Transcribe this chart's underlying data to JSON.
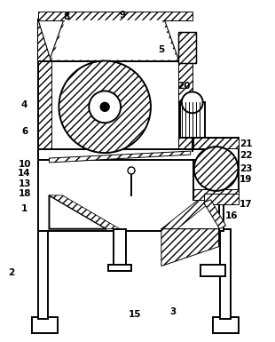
{
  "bg_color": "#ffffff",
  "figsize": [
    3.1,
    3.85
  ],
  "dpi": 100,
  "labels": [
    [
      "8",
      75,
      18
    ],
    [
      "9",
      138,
      16
    ],
    [
      "5",
      182,
      55
    ],
    [
      "4",
      27,
      118
    ],
    [
      "6",
      27,
      148
    ],
    [
      "20",
      208,
      97
    ],
    [
      "10",
      27,
      185
    ],
    [
      "14",
      27,
      195
    ],
    [
      "13",
      27,
      207
    ],
    [
      "18",
      27,
      218
    ],
    [
      "21",
      278,
      162
    ],
    [
      "22",
      278,
      175
    ],
    [
      "23",
      278,
      190
    ],
    [
      "19",
      278,
      202
    ],
    [
      "17",
      278,
      230
    ],
    [
      "16",
      262,
      243
    ],
    [
      "1",
      27,
      235
    ],
    [
      "2",
      12,
      308
    ],
    [
      "15",
      152,
      355
    ],
    [
      "3",
      195,
      352
    ]
  ]
}
